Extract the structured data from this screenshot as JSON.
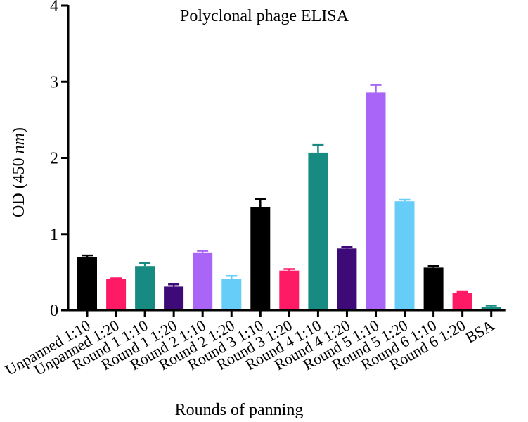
{
  "chart_data": {
    "type": "bar",
    "title": "Polyclonal phage ELISA",
    "xlabel": "Rounds of panning",
    "ylabel_main": "OD (450 ",
    "ylabel_unit": "nm",
    "ylabel_close": ")",
    "ylim": [
      0,
      4
    ],
    "yticks": [
      0,
      1,
      2,
      3,
      4
    ],
    "yticks_labels": [
      "0",
      "1",
      "2",
      "3",
      "4"
    ],
    "categories": [
      "Unpanned 1:10",
      "Unpanned 1:20",
      "Round 1 1:10",
      "Round 1 1:20",
      "Round 2 1:10",
      "Round 2 1:20",
      "Round 3 1:10",
      "Round 3 1:20",
      "Round 4 1:10",
      "Round 4 1:20",
      "Round 5 1:10",
      "Round 5 1:20",
      "Round 6 1:10",
      "Round 6 1:20",
      "BSA"
    ],
    "values": [
      0.7,
      0.41,
      0.58,
      0.31,
      0.75,
      0.41,
      1.35,
      0.52,
      2.07,
      0.81,
      2.86,
      1.43,
      0.56,
      0.23,
      0.04
    ],
    "errors": [
      0.02,
      0.01,
      0.04,
      0.03,
      0.03,
      0.04,
      0.11,
      0.02,
      0.1,
      0.02,
      0.1,
      0.02,
      0.02,
      0.01,
      0.02
    ],
    "colors": [
      "#000000",
      "#ff1a66",
      "#178a82",
      "#3d0a78",
      "#a865f7",
      "#66ccf8",
      "#000000",
      "#ff1a66",
      "#178a82",
      "#3d0a78",
      "#a865f7",
      "#66ccf8",
      "#000000",
      "#ff1a66",
      "#178a82"
    ]
  }
}
